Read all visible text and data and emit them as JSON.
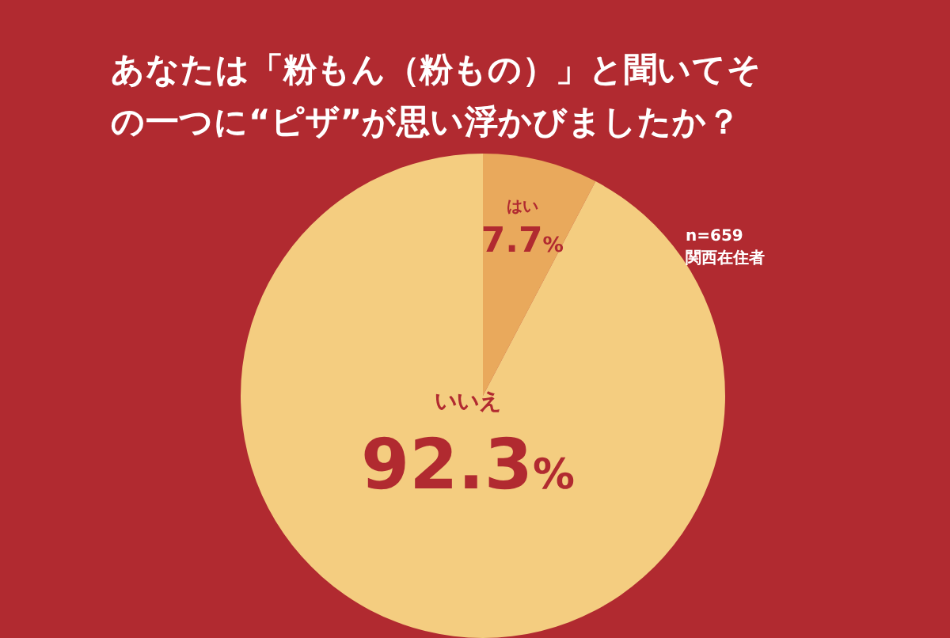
{
  "chart_data": {
    "type": "pie",
    "title": "あなたは「粉もん（粉もの）」と聞いてその一つに“ピザ”が思い浮かびましたか？",
    "categories": [
      "はい",
      "いいえ"
    ],
    "values": [
      7.7,
      92.3
    ],
    "colors": [
      "#e9a95c",
      "#f4cd80"
    ],
    "value_labels": [
      "7.7%",
      "92.3%"
    ],
    "annotations": [
      "n=659",
      "関西在住者"
    ],
    "legend": false
  }
}
